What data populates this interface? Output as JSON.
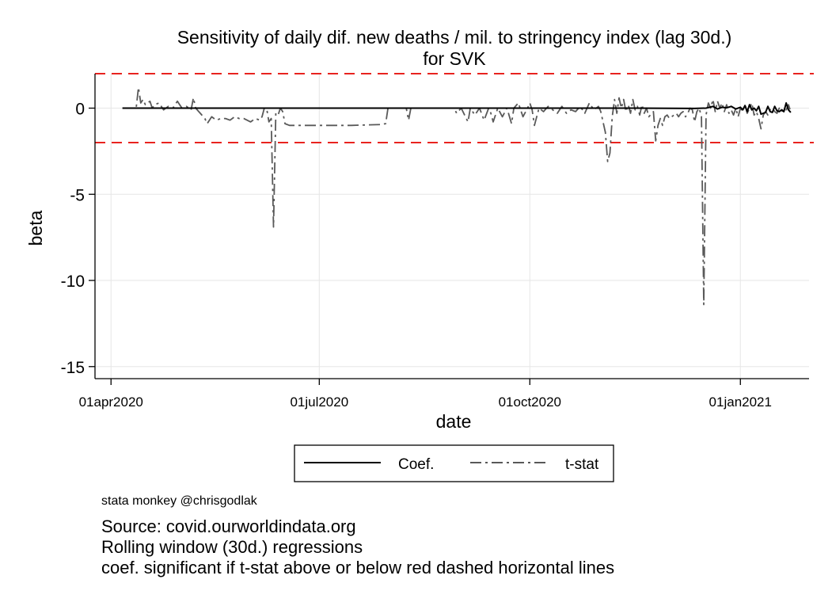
{
  "chart_data": {
    "type": "line",
    "title": "Sensitivity of daily dif. new deaths / mil. to stringency index (lag 30d.)",
    "subtitle": "for SVK",
    "xlabel": "date",
    "ylabel": "beta",
    "x_ticks": [
      "01apr2020",
      "01jul2020",
      "01oct2020",
      "01jan2021"
    ],
    "y_ticks": [
      0,
      -5,
      -10,
      -15
    ],
    "xlim": [
      "2020-03-25",
      "2021-01-31"
    ],
    "ylim": [
      -15.7,
      2.0
    ],
    "grid": true,
    "legend_position": "bottom",
    "significance_lines": [
      2,
      -2
    ],
    "series": [
      {
        "name": "Coef.",
        "style": "solid",
        "color": "#000000",
        "points": [
          [
            "2020-04-06",
            0.0
          ],
          [
            "2020-06-01",
            0.0
          ],
          [
            "2020-08-01",
            0.0
          ],
          [
            "2020-10-01",
            0.0
          ],
          [
            "2020-11-15",
            0.0
          ],
          [
            "2020-12-12",
            -0.02
          ],
          [
            "2020-12-17",
            0.0
          ],
          [
            "2020-12-20",
            0.1
          ],
          [
            "2020-12-22",
            -0.05
          ],
          [
            "2020-12-24",
            0.05
          ],
          [
            "2020-12-26",
            0.02
          ],
          [
            "2020-12-28",
            0.1
          ],
          [
            "2020-12-30",
            -0.05
          ],
          [
            "2021-01-01",
            0.05
          ],
          [
            "2021-01-02",
            -0.1
          ],
          [
            "2021-01-03",
            0.15
          ],
          [
            "2021-01-04",
            -0.2
          ],
          [
            "2021-01-05",
            0.2
          ],
          [
            "2021-01-06",
            -0.1
          ],
          [
            "2021-01-07",
            0.0
          ],
          [
            "2021-01-08",
            -0.15
          ],
          [
            "2021-01-09",
            0.1
          ],
          [
            "2021-01-10",
            -0.35
          ],
          [
            "2021-01-11",
            -0.3
          ],
          [
            "2021-01-12",
            -0.25
          ],
          [
            "2021-01-13",
            0.1
          ],
          [
            "2021-01-14",
            -0.2
          ],
          [
            "2021-01-15",
            -0.25
          ],
          [
            "2021-01-16",
            0.1
          ],
          [
            "2021-01-17",
            -0.15
          ],
          [
            "2021-01-18",
            -0.2
          ],
          [
            "2021-01-19",
            -0.1
          ],
          [
            "2021-01-20",
            -0.2
          ],
          [
            "2021-01-21",
            0.3
          ],
          [
            "2021-01-22",
            -0.1
          ],
          [
            "2021-01-23",
            -0.25
          ]
        ]
      },
      {
        "name": "t-stat",
        "style": "dash-dot",
        "color": "#595959",
        "points": [
          [
            "2020-04-06",
            0.0
          ],
          [
            "2020-04-12",
            0.0
          ],
          [
            "2020-04-13",
            1.2
          ],
          [
            "2020-04-14",
            0.3
          ],
          [
            "2020-04-15",
            0.5
          ],
          [
            "2020-04-16",
            0.2
          ],
          [
            "2020-04-18",
            0.4
          ],
          [
            "2020-04-19",
            0.0
          ],
          [
            "2020-04-20",
            0.2
          ],
          [
            "2020-04-22",
            0.3
          ],
          [
            "2020-04-24",
            -0.1
          ],
          [
            "2020-04-26",
            0.1
          ],
          [
            "2020-04-28",
            0.0
          ],
          [
            "2020-04-30",
            0.4
          ],
          [
            "2020-05-01",
            0.2
          ],
          [
            "2020-05-02",
            0.0
          ],
          [
            "2020-05-04",
            0.1
          ],
          [
            "2020-05-06",
            -0.1
          ],
          [
            "2020-05-07",
            0.6
          ],
          [
            "2020-05-08",
            0.0
          ],
          [
            "2020-05-10",
            -0.3
          ],
          [
            "2020-05-12",
            -0.6
          ],
          [
            "2020-05-13",
            -0.9
          ],
          [
            "2020-05-15",
            -0.5
          ],
          [
            "2020-05-17",
            -0.7
          ],
          [
            "2020-05-19",
            -0.6
          ],
          [
            "2020-05-21",
            -0.6
          ],
          [
            "2020-05-23",
            -0.7
          ],
          [
            "2020-05-25",
            -0.5
          ],
          [
            "2020-05-27",
            -0.6
          ],
          [
            "2020-05-29",
            -0.6
          ],
          [
            "2020-06-01",
            -0.8
          ],
          [
            "2020-06-03",
            -0.6
          ],
          [
            "2020-06-05",
            -0.7
          ],
          [
            "2020-06-06",
            -0.5
          ],
          [
            "2020-06-07",
            0.0
          ],
          [
            "2020-06-08",
            0.0
          ],
          [
            "2020-06-09",
            -0.8
          ],
          [
            "2020-06-10",
            -0.6
          ],
          [
            "2020-06-11",
            -6.9
          ],
          [
            "2020-06-12",
            -0.3
          ],
          [
            "2020-06-13",
            -0.4
          ],
          [
            "2020-06-14",
            0.0
          ],
          [
            "2020-06-15",
            -0.2
          ],
          [
            "2020-06-16",
            -0.9
          ],
          [
            "2020-06-18",
            -1.0
          ],
          [
            "2020-07-01",
            -1.0
          ],
          [
            "2020-07-15",
            -1.0
          ],
          [
            "2020-07-28",
            -0.95
          ],
          [
            "2020-07-30",
            -0.9
          ],
          [
            "2020-07-31",
            0.0
          ],
          [
            "2020-08-08",
            0.0
          ],
          [
            "2020-08-09",
            -0.7
          ],
          [
            "2020-08-10",
            0.0
          ],
          [
            "2020-08-29",
            0.0
          ],
          [
            "2020-08-30",
            -0.3
          ],
          [
            "2020-09-01",
            0.0
          ],
          [
            "2020-09-04",
            -0.8
          ],
          [
            "2020-09-05",
            0.0
          ],
          [
            "2020-09-07",
            -0.4
          ],
          [
            "2020-09-09",
            0.0
          ],
          [
            "2020-09-11",
            -0.7
          ],
          [
            "2020-09-13",
            0.0
          ],
          [
            "2020-09-14",
            -0.3
          ],
          [
            "2020-09-15",
            -0.8
          ],
          [
            "2020-09-17",
            0.0
          ],
          [
            "2020-09-19",
            -0.5
          ],
          [
            "2020-09-21",
            0.0
          ],
          [
            "2020-09-23",
            -0.9
          ],
          [
            "2020-09-24",
            0.0
          ],
          [
            "2020-09-26",
            0.3
          ],
          [
            "2020-09-28",
            -0.5
          ],
          [
            "2020-09-30",
            0.0
          ],
          [
            "2020-10-01",
            0.3
          ],
          [
            "2020-10-02",
            -0.1
          ],
          [
            "2020-10-03",
            -1.0
          ],
          [
            "2020-10-05",
            0.0
          ],
          [
            "2020-10-07",
            -0.2
          ],
          [
            "2020-10-09",
            0.1
          ],
          [
            "2020-10-11",
            -0.1
          ],
          [
            "2020-10-13",
            -0.3
          ],
          [
            "2020-10-15",
            0.1
          ],
          [
            "2020-10-17",
            -0.3
          ],
          [
            "2020-10-19",
            -0.1
          ],
          [
            "2020-10-21",
            -0.2
          ],
          [
            "2020-10-23",
            0.1
          ],
          [
            "2020-10-25",
            -0.3
          ],
          [
            "2020-10-27",
            0.3
          ],
          [
            "2020-10-29",
            -0.1
          ],
          [
            "2020-10-31",
            0.1
          ],
          [
            "2020-11-01",
            -0.2
          ],
          [
            "2020-11-03",
            -1.4
          ],
          [
            "2020-11-04",
            -3.1
          ],
          [
            "2020-11-05",
            -2.6
          ],
          [
            "2020-11-06",
            -0.5
          ],
          [
            "2020-11-07",
            0.5
          ],
          [
            "2020-11-08",
            -0.3
          ],
          [
            "2020-11-09",
            0.6
          ],
          [
            "2020-11-10",
            0.0
          ],
          [
            "2020-11-11",
            0.5
          ],
          [
            "2020-11-12",
            -0.2
          ],
          [
            "2020-11-13",
            0.2
          ],
          [
            "2020-11-14",
            -0.3
          ],
          [
            "2020-11-15",
            0.5
          ],
          [
            "2020-11-16",
            -0.1
          ],
          [
            "2020-11-17",
            0.1
          ],
          [
            "2020-11-18",
            -0.4
          ],
          [
            "2020-11-19",
            0.2
          ],
          [
            "2020-11-20",
            -0.3
          ],
          [
            "2020-11-21",
            0.0
          ],
          [
            "2020-11-22",
            -0.5
          ],
          [
            "2020-11-24",
            -0.2
          ],
          [
            "2020-11-25",
            -1.9
          ],
          [
            "2020-11-26",
            -1.0
          ],
          [
            "2020-11-27",
            -0.6
          ],
          [
            "2020-11-28",
            -1.0
          ],
          [
            "2020-11-29",
            -0.5
          ],
          [
            "2020-11-30",
            -0.4
          ],
          [
            "2020-12-01",
            -0.6
          ],
          [
            "2020-12-02",
            -0.5
          ],
          [
            "2020-12-03",
            -0.4
          ],
          [
            "2020-12-04",
            -0.3
          ],
          [
            "2020-12-05",
            -0.5
          ],
          [
            "2020-12-06",
            -0.3
          ],
          [
            "2020-12-07",
            -0.2
          ],
          [
            "2020-12-08",
            -0.5
          ],
          [
            "2020-12-09",
            -0.3
          ],
          [
            "2020-12-10",
            0.0
          ],
          [
            "2020-12-11",
            -0.1
          ],
          [
            "2020-12-12",
            -0.8
          ],
          [
            "2020-12-13",
            -0.2
          ],
          [
            "2020-12-14",
            0.0
          ],
          [
            "2020-12-15",
            -0.5
          ],
          [
            "2020-12-16",
            -11.4
          ],
          [
            "2020-12-17",
            -0.4
          ],
          [
            "2020-12-18",
            0.3
          ],
          [
            "2020-12-19",
            0.0
          ],
          [
            "2020-12-20",
            0.5
          ],
          [
            "2020-12-21",
            -0.2
          ],
          [
            "2020-12-22",
            0.4
          ],
          [
            "2020-12-23",
            0.0
          ],
          [
            "2020-12-24",
            0.3
          ],
          [
            "2020-12-25",
            -0.2
          ],
          [
            "2020-12-26",
            0.2
          ],
          [
            "2020-12-27",
            -0.3
          ],
          [
            "2020-12-28",
            -0.1
          ],
          [
            "2020-12-29",
            -0.4
          ],
          [
            "2020-12-30",
            0.0
          ],
          [
            "2020-12-31",
            -0.5
          ],
          [
            "2021-01-01",
            0.0
          ],
          [
            "2021-01-02",
            -0.2
          ],
          [
            "2021-01-03",
            0.2
          ],
          [
            "2021-01-04",
            -0.3
          ],
          [
            "2021-01-05",
            0.0
          ],
          [
            "2021-01-06",
            0.3
          ],
          [
            "2021-01-07",
            -0.4
          ],
          [
            "2021-01-08",
            -0.2
          ],
          [
            "2021-01-09",
            -0.6
          ],
          [
            "2021-01-10",
            -1.2
          ],
          [
            "2021-01-11",
            -0.4
          ],
          [
            "2021-01-12",
            -0.2
          ],
          [
            "2021-01-13",
            -0.4
          ],
          [
            "2021-01-14",
            -0.1
          ],
          [
            "2021-01-15",
            0.0
          ],
          [
            "2021-01-16",
            -0.2
          ],
          [
            "2021-01-17",
            -0.3
          ],
          [
            "2021-01-18",
            0.0
          ],
          [
            "2021-01-19",
            -0.2
          ],
          [
            "2021-01-20",
            0.0
          ],
          [
            "2021-01-21",
            -0.1
          ],
          [
            "2021-01-22",
            0.2
          ],
          [
            "2021-01-23",
            -0.2
          ]
        ]
      }
    ]
  },
  "notes": {
    "credit": "stata monkey @chrisgodlak",
    "source": "Source: covid.ourworldindata.org",
    "method": "Rolling window (30d.) regressions",
    "significance": "coef. significant if t-stat above or below red dashed horizontal lines"
  },
  "colors": {
    "significance_line": "#e8231f",
    "grid": "#e6e6e6",
    "tstat": "#595959",
    "coef": "#000000"
  }
}
